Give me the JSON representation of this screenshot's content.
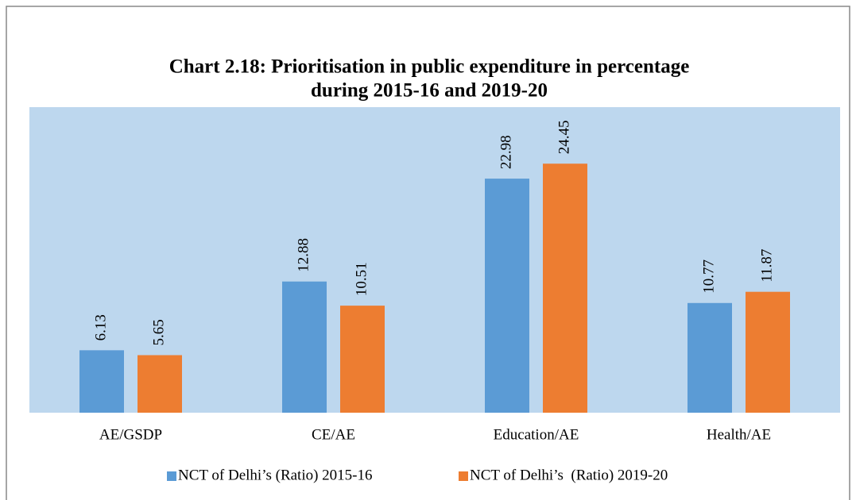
{
  "chart_data": {
    "type": "bar",
    "title": [
      "Chart 2.18: Prioritisation in public expenditure in percentage",
      "during 2015-16 and 2019-20"
    ],
    "categories": [
      "AE/GSDP",
      "CE/AE",
      "Education/AE",
      "Health/AE"
    ],
    "series": [
      {
        "name": "NCT of Delhi’s (Ratio) 2015-16",
        "color": "#5b9bd5",
        "values": [
          6.13,
          12.88,
          22.98,
          10.77
        ]
      },
      {
        "name": "NCT of Delhi’s  (Ratio) 2019-20",
        "color": "#ed7d31",
        "values": [
          5.65,
          10.51,
          24.45,
          11.87
        ]
      }
    ],
    "ylim": [
      0,
      30
    ],
    "plot_background": "#bdd7ee",
    "legend": "bottom"
  }
}
